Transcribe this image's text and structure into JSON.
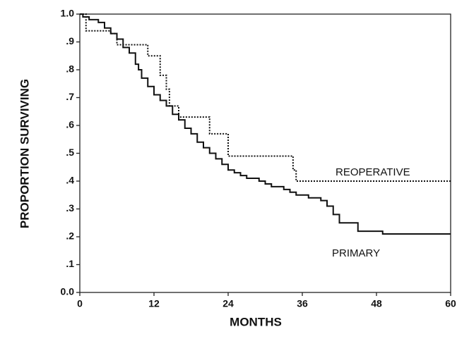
{
  "chart_data": {
    "type": "step",
    "x_label": "MONTHS",
    "y_label": "PROPORTION SURVIVING",
    "xlim": [
      0,
      60
    ],
    "xticks": [
      0,
      12,
      24,
      36,
      48,
      60
    ],
    "ylim": [
      0,
      1
    ],
    "yticks": [
      {
        "value": 0,
        "label": "0.0"
      },
      {
        "value": 0.1,
        "label": ".1"
      },
      {
        "value": 0.2,
        "label": ".2"
      },
      {
        "value": 0.3,
        "label": ".3"
      },
      {
        "value": 0.4,
        "label": ".4"
      },
      {
        "value": 0.5,
        "label": ".5"
      },
      {
        "value": 0.6,
        "label": ".6"
      },
      {
        "value": 0.7,
        "label": ".7"
      },
      {
        "value": 0.8,
        "label": ".8"
      },
      {
        "value": 0.9,
        "label": ".9"
      },
      {
        "value": 1,
        "label": "1.0"
      }
    ],
    "series": [
      {
        "name": "REOPERATIVE",
        "color": "#111111",
        "style": "dotted",
        "x": [
          0,
          1,
          5,
          6,
          11,
          13,
          14,
          14.5,
          16,
          21,
          24,
          34.5,
          35,
          60
        ],
        "values": [
          1.0,
          0.94,
          0.93,
          0.89,
          0.85,
          0.78,
          0.73,
          0.67,
          0.63,
          0.57,
          0.49,
          0.44,
          0.4,
          0.4
        ]
      },
      {
        "name": "PRIMARY",
        "color": "#111111",
        "style": "solid",
        "x": [
          0,
          0.5,
          1.5,
          3,
          4,
          5,
          6,
          7,
          8,
          9,
          9.5,
          10,
          11,
          12,
          13,
          14,
          15,
          16,
          17,
          18,
          19,
          20,
          21,
          22,
          23,
          24,
          25,
          26,
          27,
          29,
          30,
          31,
          33,
          34,
          35,
          37,
          39,
          40,
          41,
          42,
          45,
          49,
          60
        ],
        "values": [
          1.0,
          0.99,
          0.98,
          0.97,
          0.95,
          0.93,
          0.91,
          0.88,
          0.86,
          0.82,
          0.8,
          0.77,
          0.74,
          0.71,
          0.69,
          0.67,
          0.64,
          0.62,
          0.59,
          0.57,
          0.54,
          0.52,
          0.5,
          0.48,
          0.46,
          0.44,
          0.43,
          0.42,
          0.41,
          0.4,
          0.39,
          0.38,
          0.37,
          0.36,
          0.35,
          0.34,
          0.33,
          0.31,
          0.28,
          0.25,
          0.22,
          0.21,
          0.21
        ]
      }
    ]
  }
}
